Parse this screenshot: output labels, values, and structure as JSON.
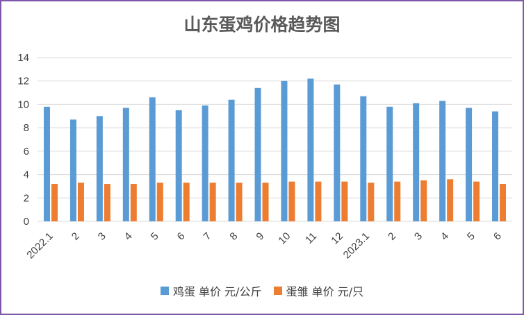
{
  "chart_data": {
    "type": "bar",
    "title": "山东蛋鸡价格趋势图",
    "categories": [
      "2022.1",
      "2",
      "3",
      "4",
      "5",
      "6",
      "7",
      "8",
      "9",
      "10",
      "11",
      "12",
      "2023.1",
      "2",
      "3",
      "4",
      "5",
      "6"
    ],
    "series": [
      {
        "name": "鸡蛋 单价 元/公斤",
        "color": "#5b9bd5",
        "values": [
          9.8,
          8.7,
          9.0,
          9.7,
          10.6,
          9.5,
          9.9,
          10.4,
          11.4,
          12.0,
          12.2,
          11.7,
          10.7,
          9.8,
          10.1,
          10.3,
          9.7,
          9.4
        ]
      },
      {
        "name": "蛋雏 单价 元/只",
        "color": "#ed7d31",
        "values": [
          3.2,
          3.3,
          3.2,
          3.2,
          3.3,
          3.3,
          3.3,
          3.3,
          3.3,
          3.4,
          3.4,
          3.4,
          3.3,
          3.4,
          3.5,
          3.6,
          3.4,
          3.2
        ]
      }
    ],
    "ylim": [
      0,
      14
    ],
    "yticks": [
      0,
      2,
      4,
      6,
      8,
      10,
      12,
      14
    ],
    "grid": true,
    "legend_position": "bottom"
  }
}
